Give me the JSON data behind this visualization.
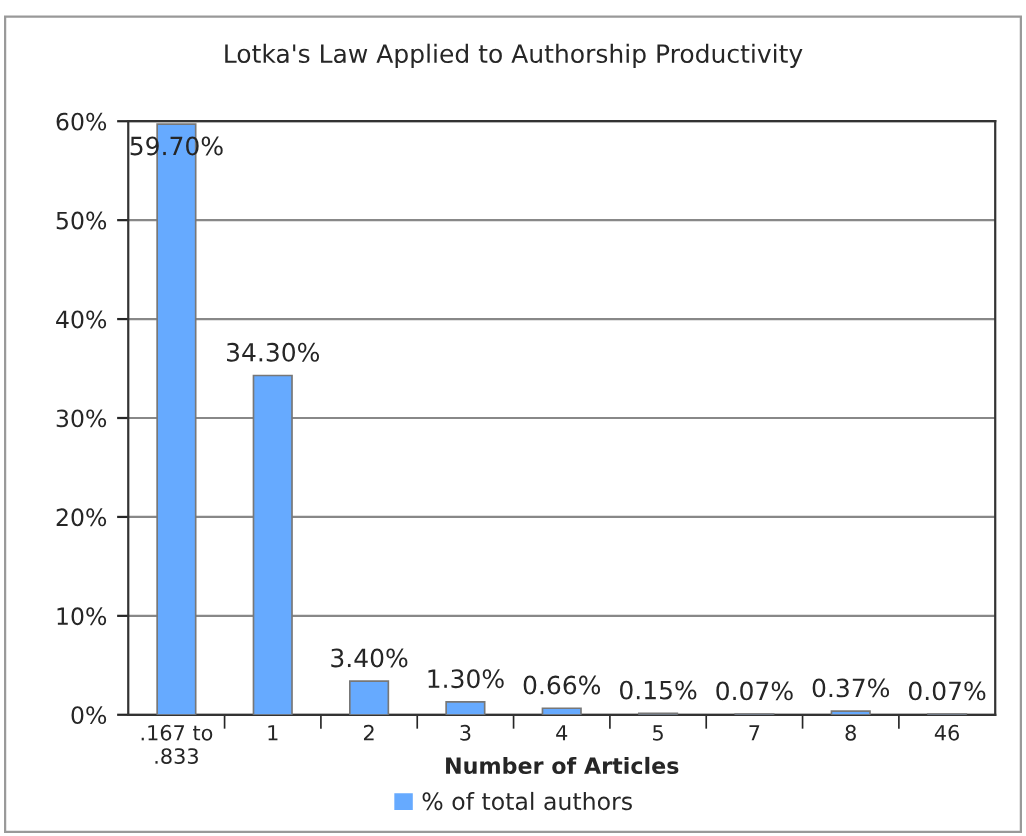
{
  "chart_data": {
    "type": "bar",
    "title": "Lotka's Law Applied to Authorship Productivity",
    "xlabel": "Number of Articles",
    "categories": [
      ".167 to\n.833",
      "1",
      "2",
      "3",
      "4",
      "5",
      "7",
      "8",
      "46"
    ],
    "series": [
      {
        "name": "% of total authors",
        "color": "#66aaff",
        "values": [
          59.7,
          34.3,
          3.4,
          1.3,
          0.66,
          0.15,
          0.07,
          0.37,
          0.07
        ],
        "value_labels": [
          "59.70%",
          "34.30%",
          "3.40%",
          "1.30%",
          "0.66%",
          "0.15%",
          "0.07%",
          "0.37%",
          "0.07%"
        ]
      }
    ],
    "ylim": [
      0,
      60
    ],
    "yticks": [
      {
        "value": 0,
        "label": "0%"
      },
      {
        "value": 10,
        "label": "10%"
      },
      {
        "value": 20,
        "label": "20%"
      },
      {
        "value": 30,
        "label": "30%"
      },
      {
        "value": 40,
        "label": "40%"
      },
      {
        "value": 50,
        "label": "50%"
      },
      {
        "value": 60,
        "label": "60%"
      }
    ],
    "grid": "y",
    "legend": "bottom"
  }
}
